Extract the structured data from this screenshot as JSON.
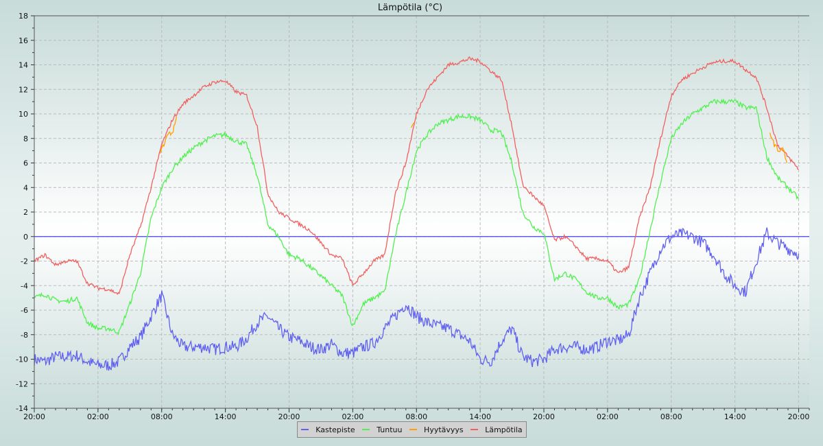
{
  "chart_data": {
    "type": "line",
    "title": "Lämpötila (°C)",
    "xlabel": "",
    "ylabel": "",
    "ylim": [
      -14,
      18
    ],
    "yticks": [
      -14,
      -12,
      -10,
      -8,
      -6,
      -4,
      -2,
      0,
      2,
      4,
      6,
      8,
      10,
      12,
      14,
      16,
      18
    ],
    "x_unit": "hours since first 20:00",
    "xlim": [
      0,
      73
    ],
    "xticks": [
      {
        "h": 0,
        "label": "20:00"
      },
      {
        "h": 6,
        "label": "02:00"
      },
      {
        "h": 12,
        "label": "08:00"
      },
      {
        "h": 18,
        "label": "14:00"
      },
      {
        "h": 24,
        "label": "20:00"
      },
      {
        "h": 30,
        "label": "02:00"
      },
      {
        "h": 36,
        "label": "08:00"
      },
      {
        "h": 42,
        "label": "14:00"
      },
      {
        "h": 48,
        "label": "20:00"
      },
      {
        "h": 54,
        "label": "02:00"
      },
      {
        "h": 60,
        "label": "08:00"
      },
      {
        "h": 66,
        "label": "14:00"
      },
      {
        "h": 72,
        "label": "20:00"
      }
    ],
    "grid": true,
    "legend_position": "bottom-center",
    "series": [
      {
        "name": "Kastepiste",
        "color": "#6060f0",
        "noise": 0.5,
        "values": [
          -10,
          -10.2,
          -9.8,
          -9.8,
          -9.7,
          -10.2,
          -10.5,
          -10.5,
          -10.2,
          -9,
          -8.2,
          -6.5,
          -4.8,
          -8,
          -9,
          -9,
          -9,
          -9.2,
          -9,
          -9,
          -8.3,
          -7,
          -6.5,
          -7.5,
          -8.2,
          -8.5,
          -9,
          -9.2,
          -8.8,
          -9.5,
          -9.5,
          -9,
          -8.7,
          -7.5,
          -6.5,
          -5.5,
          -6.5,
          -7,
          -7.3,
          -7.5,
          -8,
          -8.5,
          -10,
          -10.2,
          -8.5,
          -7.5,
          -9.8,
          -10.2,
          -10,
          -9.2,
          -9,
          -9,
          -9.2,
          -9,
          -8.5,
          -8.5,
          -8,
          -5,
          -3,
          -1,
          0,
          0.2,
          0,
          -0.5,
          -1.5,
          -3,
          -4,
          -4.5,
          -2,
          0.3,
          -0.5,
          -1,
          -1.4
        ]
      },
      {
        "name": "Tuntuu",
        "color": "#50f050",
        "noise": 0.2,
        "values": [
          -5,
          -4.7,
          -5.2,
          -5.3,
          -5,
          -7,
          -7.5,
          -7.5,
          -7.8,
          -5.5,
          -3,
          1.5,
          4,
          5.5,
          6.5,
          7.2,
          7.8,
          8.2,
          8.3,
          7.8,
          7.5,
          5,
          1,
          0,
          -1.5,
          -1.8,
          -2.5,
          -3.2,
          -4,
          -4.8,
          -7.3,
          -5.5,
          -5,
          -4.5,
          0,
          3.5,
          7,
          8.3,
          9.2,
          9.5,
          9.8,
          9.8,
          9.5,
          8.7,
          8.5,
          6,
          2,
          0.8,
          0.3,
          -3.5,
          -3,
          -3.5,
          -4.5,
          -5,
          -5,
          -5.8,
          -5.5,
          -3.5,
          0.5,
          4.5,
          8,
          9.2,
          10,
          10.5,
          11,
          11,
          11,
          10.5,
          10.5,
          6.5,
          4.8,
          4,
          3.1
        ]
      },
      {
        "name": "Hyytävyys",
        "color": "#ffa000",
        "noise": 0.2,
        "segments": [
          [
            [
              11.8,
              6.8
            ],
            [
              12.2,
              7.5
            ],
            [
              12.6,
              8.5
            ],
            [
              13,
              8.3
            ],
            [
              13.4,
              9.8
            ]
          ],
          [
            [
              35.5,
              8.7
            ],
            [
              35.8,
              9.3
            ]
          ],
          [
            [
              69.3,
              8.5
            ],
            [
              69.7,
              7.5
            ],
            [
              70.1,
              7
            ],
            [
              70.5,
              7.2
            ],
            [
              70.9,
              6
            ]
          ]
        ]
      },
      {
        "name": "Lämpötila",
        "color": "#f06060",
        "noise": 0.15,
        "values": [
          -2,
          -1.5,
          -2.3,
          -2,
          -2,
          -3.8,
          -4.2,
          -4.3,
          -4.7,
          -1.5,
          0.8,
          4,
          7.5,
          9.5,
          10.8,
          11.5,
          12.2,
          12.6,
          12.7,
          11.8,
          11.5,
          9,
          3.5,
          2,
          1.5,
          1,
          0.5,
          -0.5,
          -1.5,
          -1.8,
          -4,
          -3,
          -2,
          -1.5,
          3.5,
          6,
          10,
          12,
          13,
          14,
          14.2,
          14.5,
          14.3,
          13.5,
          12.8,
          9,
          4.2,
          3.3,
          2.5,
          -0.3,
          0,
          -0.8,
          -1.8,
          -1.8,
          -2,
          -3,
          -2.5,
          1.5,
          4,
          8,
          11.5,
          12.8,
          13.3,
          13.8,
          14.2,
          14.3,
          14.3,
          13.6,
          13,
          10.5,
          7.5,
          6.5,
          5.5
        ]
      }
    ],
    "reference_line": {
      "y": 0,
      "color": "#4040ff"
    }
  }
}
